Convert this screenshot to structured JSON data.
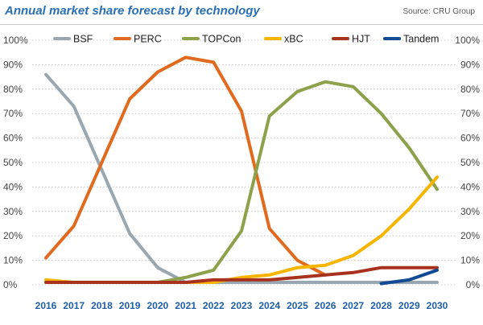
{
  "header": {
    "title": "Annual market share forecast by technology",
    "source": "Source: CRU Group"
  },
  "chart_data": {
    "type": "line",
    "title": "Annual market share forecast by technology",
    "x": [
      2016,
      2017,
      2018,
      2019,
      2020,
      2021,
      2022,
      2023,
      2024,
      2025,
      2026,
      2027,
      2028,
      2029,
      2030
    ],
    "ylim": [
      0,
      100
    ],
    "y_ticks": [
      "0%",
      "10%",
      "20%",
      "30%",
      "40%",
      "50%",
      "60%",
      "70%",
      "80%",
      "90%",
      "100%"
    ],
    "y_tick_values": [
      0,
      10,
      20,
      30,
      40,
      50,
      60,
      70,
      80,
      90,
      100
    ],
    "grid": true,
    "legend_position": "top",
    "series": [
      {
        "name": "BSF",
        "color": "#9aa7b1",
        "values": [
          86,
          73,
          47,
          21,
          7,
          1,
          1,
          1,
          1,
          1,
          1,
          1,
          1,
          1,
          1
        ]
      },
      {
        "name": "PERC",
        "color": "#e26a1e",
        "values": [
          11,
          24,
          50,
          76,
          87,
          93,
          91,
          71,
          23,
          10,
          4,
          null,
          null,
          null,
          null
        ]
      },
      {
        "name": "TOPCon",
        "color": "#8da14a",
        "values": [
          null,
          null,
          null,
          null,
          1,
          3,
          6,
          22,
          69,
          79,
          83,
          81,
          70,
          56,
          39
        ]
      },
      {
        "name": "xBC",
        "color": "#f7b500",
        "values": [
          2,
          1,
          1,
          1,
          1,
          1,
          1,
          3,
          4,
          7,
          8,
          12,
          20,
          31,
          44
        ]
      },
      {
        "name": "HJT",
        "color": "#a8321e",
        "values": [
          1,
          1,
          1,
          1,
          1,
          1,
          2,
          2,
          2,
          3,
          4,
          5,
          7,
          7,
          7
        ]
      },
      {
        "name": "Tandem",
        "color": "#124a93",
        "values": [
          null,
          null,
          null,
          null,
          null,
          null,
          null,
          null,
          null,
          null,
          null,
          null,
          0.5,
          2,
          6
        ]
      }
    ]
  }
}
